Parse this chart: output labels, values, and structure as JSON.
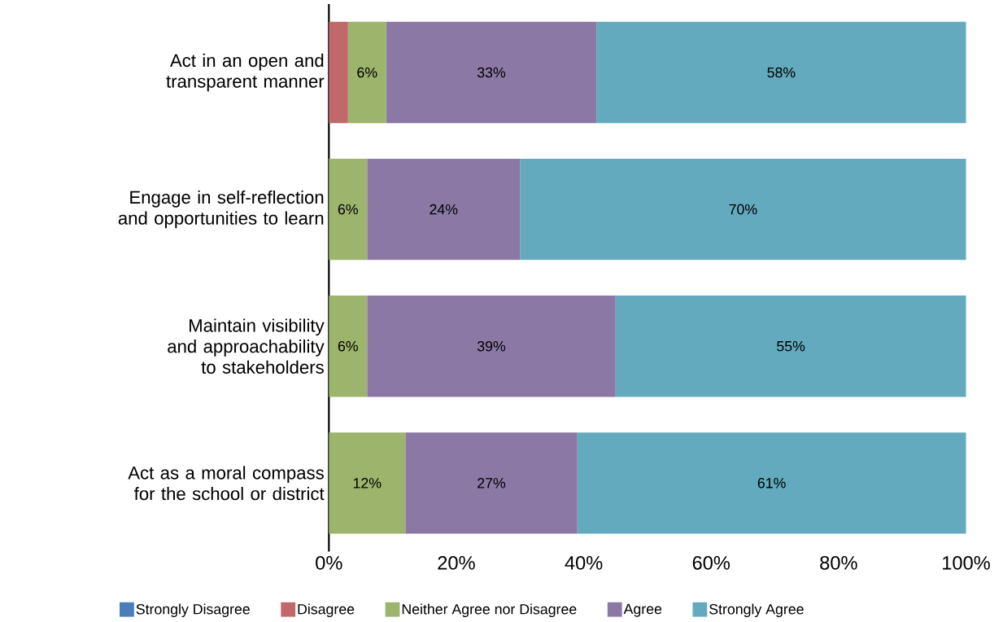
{
  "chart_data": {
    "type": "bar",
    "orientation": "horizontal",
    "stacked": true,
    "categories": [
      "Act in an open and transparent manner",
      "Engage in self-reflection and opportunities to learn",
      "Maintain visibility and approachability to stakeholders",
      "Act as a moral compass for the school or district"
    ],
    "series": [
      {
        "name": "Strongly Disagree",
        "color": "#4a7ebb",
        "values": [
          0,
          0,
          0,
          0
        ],
        "value_labels": [
          null,
          null,
          null,
          null
        ]
      },
      {
        "name": "Disagree",
        "color": "#c0686a",
        "values": [
          3,
          0,
          0,
          0
        ],
        "value_labels": [
          null,
          null,
          null,
          null
        ]
      },
      {
        "name": "Neither Agree nor Disagree",
        "color": "#9db46c",
        "values": [
          6,
          6,
          6,
          12
        ],
        "value_labels": [
          "6%",
          "6%",
          "6%",
          "12%"
        ]
      },
      {
        "name": "Agree",
        "color": "#8b78a5",
        "values": [
          33,
          24,
          39,
          27
        ],
        "value_labels": [
          "33%",
          "24%",
          "39%",
          "27%"
        ]
      },
      {
        "name": "Strongly Agree",
        "color": "#63aabe",
        "values": [
          58,
          70,
          55,
          61
        ],
        "value_labels": [
          "58%",
          "70%",
          "55%",
          "61%"
        ]
      }
    ],
    "xlim": [
      0,
      100
    ],
    "xticks": [
      {
        "value": 0,
        "label": "0%"
      },
      {
        "value": 20,
        "label": "20%"
      },
      {
        "value": 40,
        "label": "40%"
      },
      {
        "value": 60,
        "label": "60%"
      },
      {
        "value": 80,
        "label": "80%"
      },
      {
        "value": 100,
        "label": "100%"
      }
    ],
    "grid": false,
    "legend": "bottom"
  }
}
